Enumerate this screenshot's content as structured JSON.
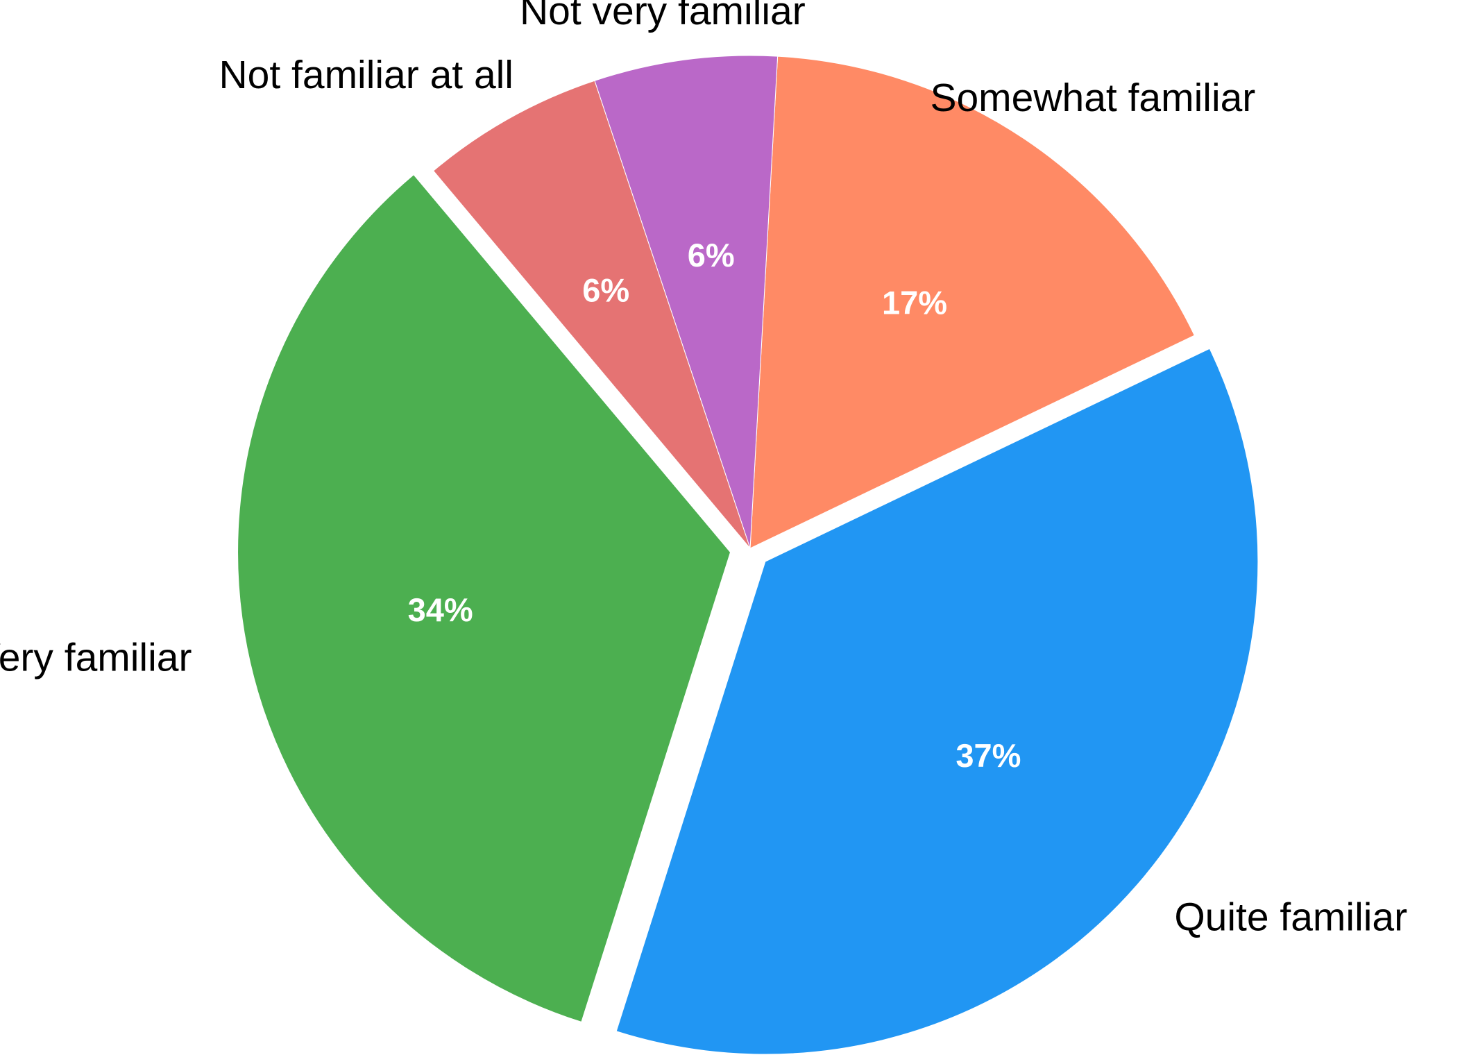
{
  "chart_data": {
    "type": "pie",
    "title": "",
    "start_angle_deg": 130,
    "direction": "counterclockwise",
    "slices": [
      {
        "label": "Very familiar",
        "value": 34,
        "value_label": "34%",
        "color": "#4CAF50",
        "exploded": true
      },
      {
        "label": "Quite familiar",
        "value": 37,
        "value_label": "37%",
        "color": "#2196F3",
        "exploded": true
      },
      {
        "label": "Somewhat familiar",
        "value": 17,
        "value_label": "17%",
        "color": "#FF8A65",
        "exploded": false
      },
      {
        "label": "Not very familiar",
        "value": 6,
        "value_label": "6%",
        "color": "#BA68C8",
        "exploded": false
      },
      {
        "label": "Not familiar at all",
        "value": 6,
        "value_label": "6%",
        "color": "#E57373",
        "exploded": false
      }
    ]
  }
}
